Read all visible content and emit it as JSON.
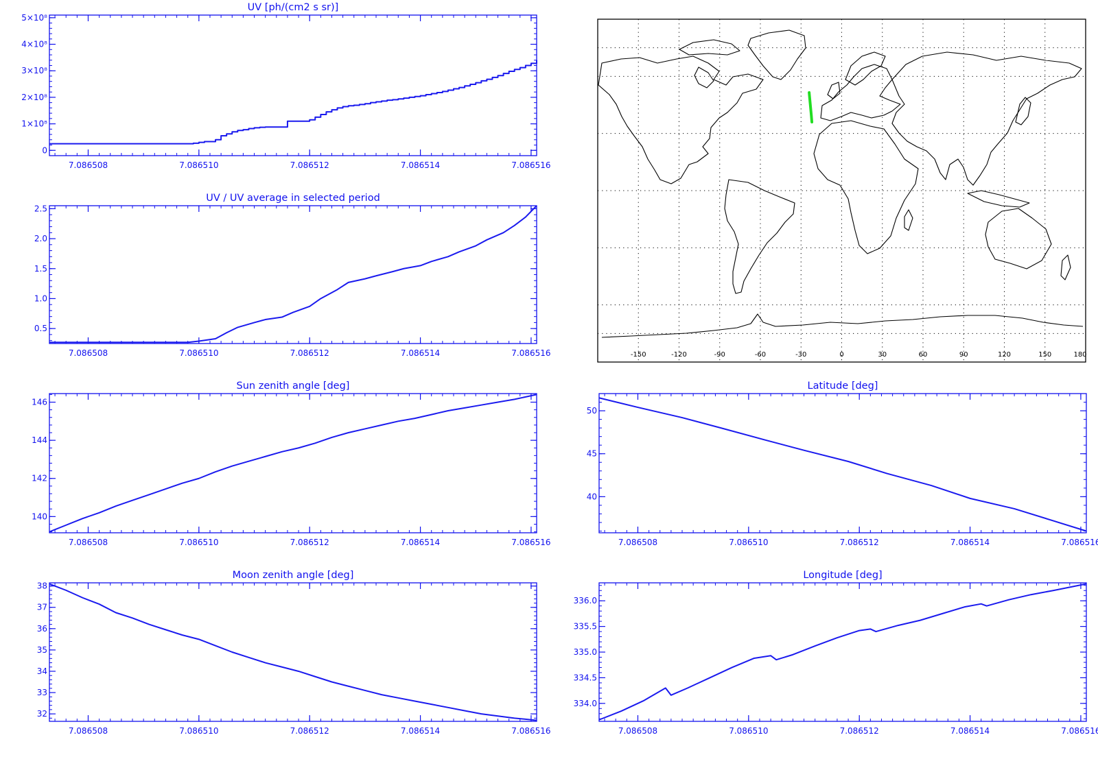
{
  "colors": {
    "axis": "#1010ee",
    "series": "#1a1aee",
    "map_outline": "#000000",
    "map_grid": "#000000",
    "track": "#22dd22"
  },
  "chart_data": [
    {
      "id": "uv",
      "type": "line",
      "step": true,
      "title": "UV [ph/(cm2 s sr)]",
      "xlabel": "",
      "ylabel": "",
      "x_ticks": [
        "7.086508",
        "7.086510",
        "7.086512",
        "7.086514",
        "7.086516"
      ],
      "x_tick_values": [
        7.086508,
        7.08651,
        7.086512,
        7.086514,
        7.086516
      ],
      "xlim": [
        7.0865073,
        7.0865161
      ],
      "y_ticks": [
        "0",
        "1×10⁸",
        "2×10⁸",
        "3×10⁸",
        "4×10⁸",
        "5×10⁸"
      ],
      "y_tick_values": [
        0,
        100000000,
        200000000,
        300000000,
        400000000,
        500000000
      ],
      "ylim": [
        -20000000,
        510000000
      ],
      "x": [
        7.0865073,
        7.0865098,
        7.0865099,
        7.08651,
        7.0865101,
        7.0865103,
        7.0865104,
        7.0865105,
        7.0865106,
        7.0865107,
        7.0865108,
        7.0865109,
        7.086511,
        7.0865111,
        7.0865112,
        7.0865113,
        7.0865114,
        7.0865115,
        7.0865116,
        7.0865117,
        7.0865118,
        7.0865119,
        7.086512,
        7.0865121,
        7.0865122,
        7.0865123,
        7.0865124,
        7.0865125,
        7.0865126,
        7.0865127,
        7.0865128,
        7.0865129,
        7.086513,
        7.0865131,
        7.0865132,
        7.0865133,
        7.0865134,
        7.0865135,
        7.0865136,
        7.0865137,
        7.0865138,
        7.0865139,
        7.086514,
        7.0865141,
        7.0865142,
        7.0865143,
        7.0865144,
        7.0865145,
        7.0865146,
        7.0865147,
        7.0865148,
        7.0865149,
        7.086515,
        7.0865151,
        7.0865152,
        7.0865153,
        7.0865154,
        7.0865155,
        7.0865156,
        7.0865157,
        7.0865158,
        7.0865159,
        7.086516,
        7.0865161
      ],
      "values": [
        25000000,
        25000000,
        27000000,
        30000000,
        33000000,
        40000000,
        55000000,
        62000000,
        70000000,
        75000000,
        78000000,
        82000000,
        85000000,
        87000000,
        88000000,
        88000000,
        88000000,
        88000000,
        110000000,
        110000000,
        110000000,
        110000000,
        115000000,
        125000000,
        135000000,
        145000000,
        153000000,
        160000000,
        165000000,
        168000000,
        170000000,
        173000000,
        176000000,
        180000000,
        183000000,
        186000000,
        189000000,
        191000000,
        194000000,
        197000000,
        200000000,
        203000000,
        206000000,
        210000000,
        214000000,
        218000000,
        222000000,
        227000000,
        232000000,
        237000000,
        243000000,
        249000000,
        255000000,
        262000000,
        268000000,
        275000000,
        282000000,
        290000000,
        298000000,
        305000000,
        312000000,
        320000000,
        328000000,
        340000000
      ]
    },
    {
      "id": "uv_ratio",
      "type": "line",
      "title": "UV / UV average in selected period",
      "xlabel": "",
      "ylabel": "",
      "x_ticks": [
        "7.086508",
        "7.086510",
        "7.086512",
        "7.086514",
        "7.086516"
      ],
      "x_tick_values": [
        7.086508,
        7.08651,
        7.086512,
        7.086514,
        7.086516
      ],
      "xlim": [
        7.0865073,
        7.0865161
      ],
      "y_ticks": [
        "0.5",
        "1.0",
        "1.5",
        "2.0",
        "2.5"
      ],
      "y_tick_values": [
        0.5,
        1.0,
        1.5,
        2.0,
        2.5
      ],
      "ylim": [
        0.25,
        2.55
      ],
      "x": [
        7.0865073,
        7.0865078,
        7.0865083,
        7.0865088,
        7.0865093,
        7.0865098,
        7.08651,
        7.0865103,
        7.0865105,
        7.0865107,
        7.086511,
        7.0865112,
        7.0865115,
        7.0865117,
        7.086512,
        7.0865122,
        7.0865125,
        7.0865127,
        7.086513,
        7.0865132,
        7.0865135,
        7.0865137,
        7.086514,
        7.0865142,
        7.0865145,
        7.0865147,
        7.086515,
        7.0865152,
        7.0865155,
        7.0865157,
        7.0865159,
        7.0865161
      ],
      "values": [
        0.27,
        0.27,
        0.27,
        0.27,
        0.27,
        0.27,
        0.29,
        0.33,
        0.43,
        0.52,
        0.6,
        0.65,
        0.69,
        0.77,
        0.87,
        1.0,
        1.15,
        1.27,
        1.33,
        1.38,
        1.45,
        1.5,
        1.55,
        1.62,
        1.7,
        1.78,
        1.88,
        1.98,
        2.1,
        2.22,
        2.36,
        2.55
      ]
    },
    {
      "id": "sun_zenith",
      "type": "line",
      "title": "Sun zenith angle [deg]",
      "xlabel": "",
      "ylabel": "",
      "x_ticks": [
        "7.086508",
        "7.086510",
        "7.086512",
        "7.086514",
        "7.086516"
      ],
      "x_tick_values": [
        7.086508,
        7.08651,
        7.086512,
        7.086514,
        7.086516
      ],
      "xlim": [
        7.0865073,
        7.0865161
      ],
      "y_ticks": [
        "140",
        "142",
        "144",
        "146"
      ],
      "y_tick_values": [
        140,
        142,
        144,
        146
      ],
      "ylim": [
        139.15,
        146.45
      ],
      "x": [
        7.0865073,
        7.0865076,
        7.0865079,
        7.0865082,
        7.0865085,
        7.0865088,
        7.0865091,
        7.0865094,
        7.0865097,
        7.08651,
        7.0865103,
        7.0865106,
        7.0865109,
        7.0865112,
        7.0865115,
        7.0865118,
        7.0865121,
        7.0865124,
        7.0865127,
        7.086513,
        7.0865133,
        7.0865136,
        7.0865139,
        7.0865142,
        7.0865145,
        7.0865148,
        7.0865151,
        7.0865154,
        7.0865157,
        7.0865161
      ],
      "values": [
        139.2,
        139.55,
        139.9,
        140.2,
        140.55,
        140.85,
        141.15,
        141.45,
        141.75,
        142.0,
        142.35,
        142.65,
        142.9,
        143.15,
        143.4,
        143.6,
        143.85,
        144.15,
        144.4,
        144.6,
        144.8,
        145.0,
        145.15,
        145.35,
        145.55,
        145.7,
        145.85,
        146.0,
        146.15,
        146.4
      ]
    },
    {
      "id": "moon_zenith",
      "type": "line",
      "title": "Moon zenith angle [deg]",
      "xlabel": "",
      "ylabel": "",
      "x_ticks": [
        "7.086508",
        "7.086510",
        "7.086512",
        "7.086514",
        "7.086516"
      ],
      "x_tick_values": [
        7.086508,
        7.08651,
        7.086512,
        7.086514,
        7.086516
      ],
      "xlim": [
        7.0865073,
        7.0865161
      ],
      "y_ticks": [
        "32",
        "33",
        "34",
        "35",
        "36",
        "37",
        "38"
      ],
      "y_tick_values": [
        32,
        33,
        34,
        35,
        36,
        37,
        38
      ],
      "ylim": [
        31.65,
        38.15
      ],
      "x": [
        7.0865073,
        7.0865076,
        7.0865079,
        7.0865082,
        7.0865085,
        7.0865088,
        7.0865091,
        7.0865094,
        7.0865097,
        7.08651,
        7.0865103,
        7.0865106,
        7.0865109,
        7.0865112,
        7.0865115,
        7.0865118,
        7.0865121,
        7.0865124,
        7.0865127,
        7.086513,
        7.0865133,
        7.0865136,
        7.0865139,
        7.0865142,
        7.0865145,
        7.0865148,
        7.0865151,
        7.0865154,
        7.0865157,
        7.0865161
      ],
      "values": [
        38.1,
        37.8,
        37.45,
        37.15,
        36.75,
        36.5,
        36.2,
        35.95,
        35.7,
        35.5,
        35.2,
        34.9,
        34.65,
        34.4,
        34.2,
        34.0,
        33.75,
        33.5,
        33.3,
        33.1,
        32.9,
        32.75,
        32.6,
        32.45,
        32.3,
        32.15,
        32.0,
        31.9,
        31.8,
        31.7
      ]
    },
    {
      "id": "latitude",
      "type": "line",
      "title": "Latitude [deg]",
      "xlabel": "",
      "ylabel": "",
      "x_ticks": [
        "7.086508",
        "7.086510",
        "7.086512",
        "7.086514",
        "7.086516"
      ],
      "x_tick_values": [
        7.086508,
        7.08651,
        7.086512,
        7.086514,
        7.086516
      ],
      "xlim": [
        7.0865073,
        7.0865161
      ],
      "y_ticks": [
        "40",
        "45",
        "50"
      ],
      "y_tick_values": [
        40,
        45,
        50
      ],
      "ylim": [
        35.8,
        52.0
      ],
      "x": [
        7.0865073,
        7.086508,
        7.0865088,
        7.0865095,
        7.0865103,
        7.086511,
        7.0865118,
        7.0865125,
        7.0865133,
        7.086514,
        7.0865148,
        7.0865155,
        7.0865161
      ],
      "values": [
        51.5,
        50.4,
        49.2,
        48.0,
        46.6,
        45.4,
        44.1,
        42.7,
        41.3,
        39.8,
        38.6,
        37.2,
        36.0
      ]
    },
    {
      "id": "longitude",
      "type": "line",
      "title": "Longitude [deg]",
      "xlabel": "",
      "ylabel": "",
      "x_ticks": [
        "7.086508",
        "7.086510",
        "7.086512",
        "7.086514",
        "7.086516"
      ],
      "x_tick_values": [
        7.086508,
        7.08651,
        7.086512,
        7.086514,
        7.086516
      ],
      "xlim": [
        7.0865073,
        7.0865161
      ],
      "y_ticks": [
        "334.0",
        "334.5",
        "335.0",
        "335.5",
        "336.0"
      ],
      "y_tick_values": [
        334.0,
        334.5,
        335.0,
        335.5,
        336.0
      ],
      "ylim": [
        333.65,
        336.35
      ],
      "x": [
        7.0865073,
        7.0865077,
        7.0865081,
        7.0865085,
        7.0865086,
        7.0865089,
        7.0865093,
        7.0865097,
        7.0865101,
        7.0865104,
        7.0865105,
        7.0865108,
        7.0865112,
        7.0865116,
        7.086512,
        7.0865122,
        7.0865123,
        7.0865127,
        7.0865131,
        7.0865135,
        7.0865139,
        7.0865142,
        7.0865143,
        7.0865147,
        7.0865151,
        7.0865155,
        7.0865161
      ],
      "values": [
        333.68,
        333.85,
        334.05,
        334.3,
        334.16,
        334.3,
        334.5,
        334.7,
        334.88,
        334.93,
        334.85,
        334.95,
        335.12,
        335.28,
        335.42,
        335.45,
        335.4,
        335.52,
        335.62,
        335.75,
        335.88,
        335.94,
        335.9,
        336.02,
        336.12,
        336.2,
        336.33
      ]
    },
    {
      "id": "ground_track_map",
      "type": "map",
      "projection": "cylindrical",
      "x_ticks": [
        "-150",
        "-120",
        "-90",
        "-60",
        "-30",
        "0",
        "30",
        "60",
        "90",
        "120",
        "150",
        "180"
      ],
      "x_tick_values": [
        -150,
        -120,
        -90,
        -60,
        -30,
        0,
        30,
        60,
        90,
        120,
        150,
        180
      ],
      "xlim": [
        -180,
        180
      ],
      "ylim": [
        -90,
        90
      ],
      "grid": true,
      "track_lon": [
        -24.0,
        -23.6,
        -23.2,
        -22.8,
        -22.4,
        -22.0
      ],
      "track_lat": [
        51.5,
        48.5,
        45.5,
        42.5,
        39.5,
        36.0
      ]
    }
  ]
}
